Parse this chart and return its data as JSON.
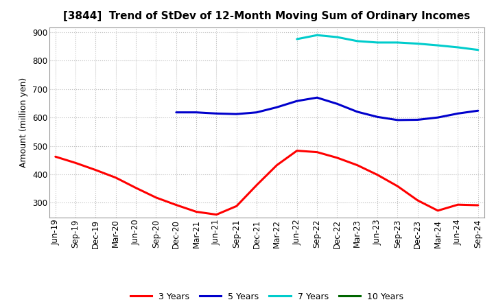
{
  "title": "[3844]  Trend of StDev of 12-Month Moving Sum of Ordinary Incomes",
  "ylabel": "Amount (million yen)",
  "ylim": [
    248,
    918
  ],
  "yticks": [
    300,
    400,
    500,
    600,
    700,
    800,
    900
  ],
  "background_color": "#ffffff",
  "plot_bg_color": "#ffffff",
  "grid_color": "#aaaaaa",
  "x_labels": [
    "Jun-19",
    "Sep-19",
    "Dec-19",
    "Mar-20",
    "Jun-20",
    "Sep-20",
    "Dec-20",
    "Mar-21",
    "Jun-21",
    "Sep-21",
    "Dec-21",
    "Mar-22",
    "Jun-22",
    "Sep-22",
    "Dec-22",
    "Mar-23",
    "Jun-23",
    "Sep-23",
    "Dec-23",
    "Mar-24",
    "Jun-24",
    "Sep-24"
  ],
  "series": {
    "3 Years": {
      "color": "#ff0000",
      "values": [
        462,
        440,
        415,
        388,
        352,
        318,
        292,
        268,
        258,
        288,
        362,
        432,
        483,
        478,
        458,
        432,
        398,
        358,
        308,
        272,
        293,
        291
      ]
    },
    "5 Years": {
      "color": "#0000cc",
      "values": [
        null,
        null,
        null,
        null,
        null,
        null,
        618,
        618,
        614,
        612,
        618,
        636,
        658,
        670,
        648,
        620,
        602,
        591,
        592,
        600,
        614,
        624
      ]
    },
    "7 Years": {
      "color": "#00cccc",
      "values": [
        null,
        null,
        null,
        null,
        null,
        null,
        null,
        null,
        null,
        null,
        null,
        null,
        876,
        890,
        883,
        869,
        864,
        864,
        860,
        854,
        847,
        838
      ]
    },
    "10 Years": {
      "color": "#006600",
      "values": [
        null,
        null,
        null,
        null,
        null,
        null,
        null,
        null,
        null,
        null,
        null,
        null,
        null,
        null,
        null,
        null,
        null,
        null,
        null,
        null,
        null,
        null
      ]
    }
  },
  "legend_labels": [
    "3 Years",
    "5 Years",
    "7 Years",
    "10 Years"
  ],
  "legend_colors": [
    "#ff0000",
    "#0000cc",
    "#00cccc",
    "#006600"
  ],
  "title_fontsize": 11,
  "label_fontsize": 9,
  "tick_fontsize": 8.5,
  "legend_fontsize": 9
}
